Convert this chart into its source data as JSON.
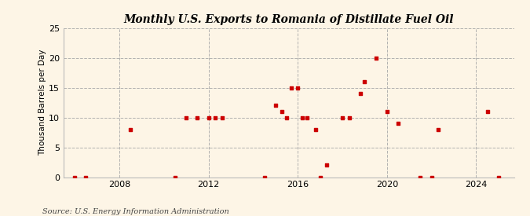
{
  "title": "Monthly U.S. Exports to Romania of Distillate Fuel Oil",
  "ylabel": "Thousand Barrels per Day",
  "source": "Source: U.S. Energy Information Administration",
  "background_color": "#fdf5e6",
  "scatter_color": "#cc0000",
  "marker_size": 12,
  "xlim": [
    2005.5,
    2025.7
  ],
  "ylim": [
    0,
    25
  ],
  "yticks": [
    0,
    5,
    10,
    15,
    20,
    25
  ],
  "xticks": [
    2008,
    2012,
    2016,
    2020,
    2024
  ],
  "data_points": [
    [
      2006.0,
      0
    ],
    [
      2006.5,
      0
    ],
    [
      2008.5,
      8
    ],
    [
      2010.5,
      0
    ],
    [
      2011.0,
      10
    ],
    [
      2011.5,
      10
    ],
    [
      2012.0,
      10
    ],
    [
      2012.3,
      10
    ],
    [
      2012.6,
      10
    ],
    [
      2014.5,
      0
    ],
    [
      2015.0,
      12
    ],
    [
      2015.3,
      11
    ],
    [
      2015.5,
      10
    ],
    [
      2015.7,
      15
    ],
    [
      2016.0,
      15
    ],
    [
      2016.2,
      10
    ],
    [
      2016.4,
      10
    ],
    [
      2016.8,
      8
    ],
    [
      2017.0,
      0
    ],
    [
      2017.3,
      2
    ],
    [
      2018.0,
      10
    ],
    [
      2018.3,
      10
    ],
    [
      2018.8,
      14
    ],
    [
      2019.0,
      16
    ],
    [
      2019.5,
      20
    ],
    [
      2020.0,
      11
    ],
    [
      2020.5,
      9
    ],
    [
      2021.5,
      0
    ],
    [
      2022.0,
      0
    ],
    [
      2022.3,
      8
    ],
    [
      2024.5,
      11
    ],
    [
      2025.0,
      0
    ]
  ]
}
